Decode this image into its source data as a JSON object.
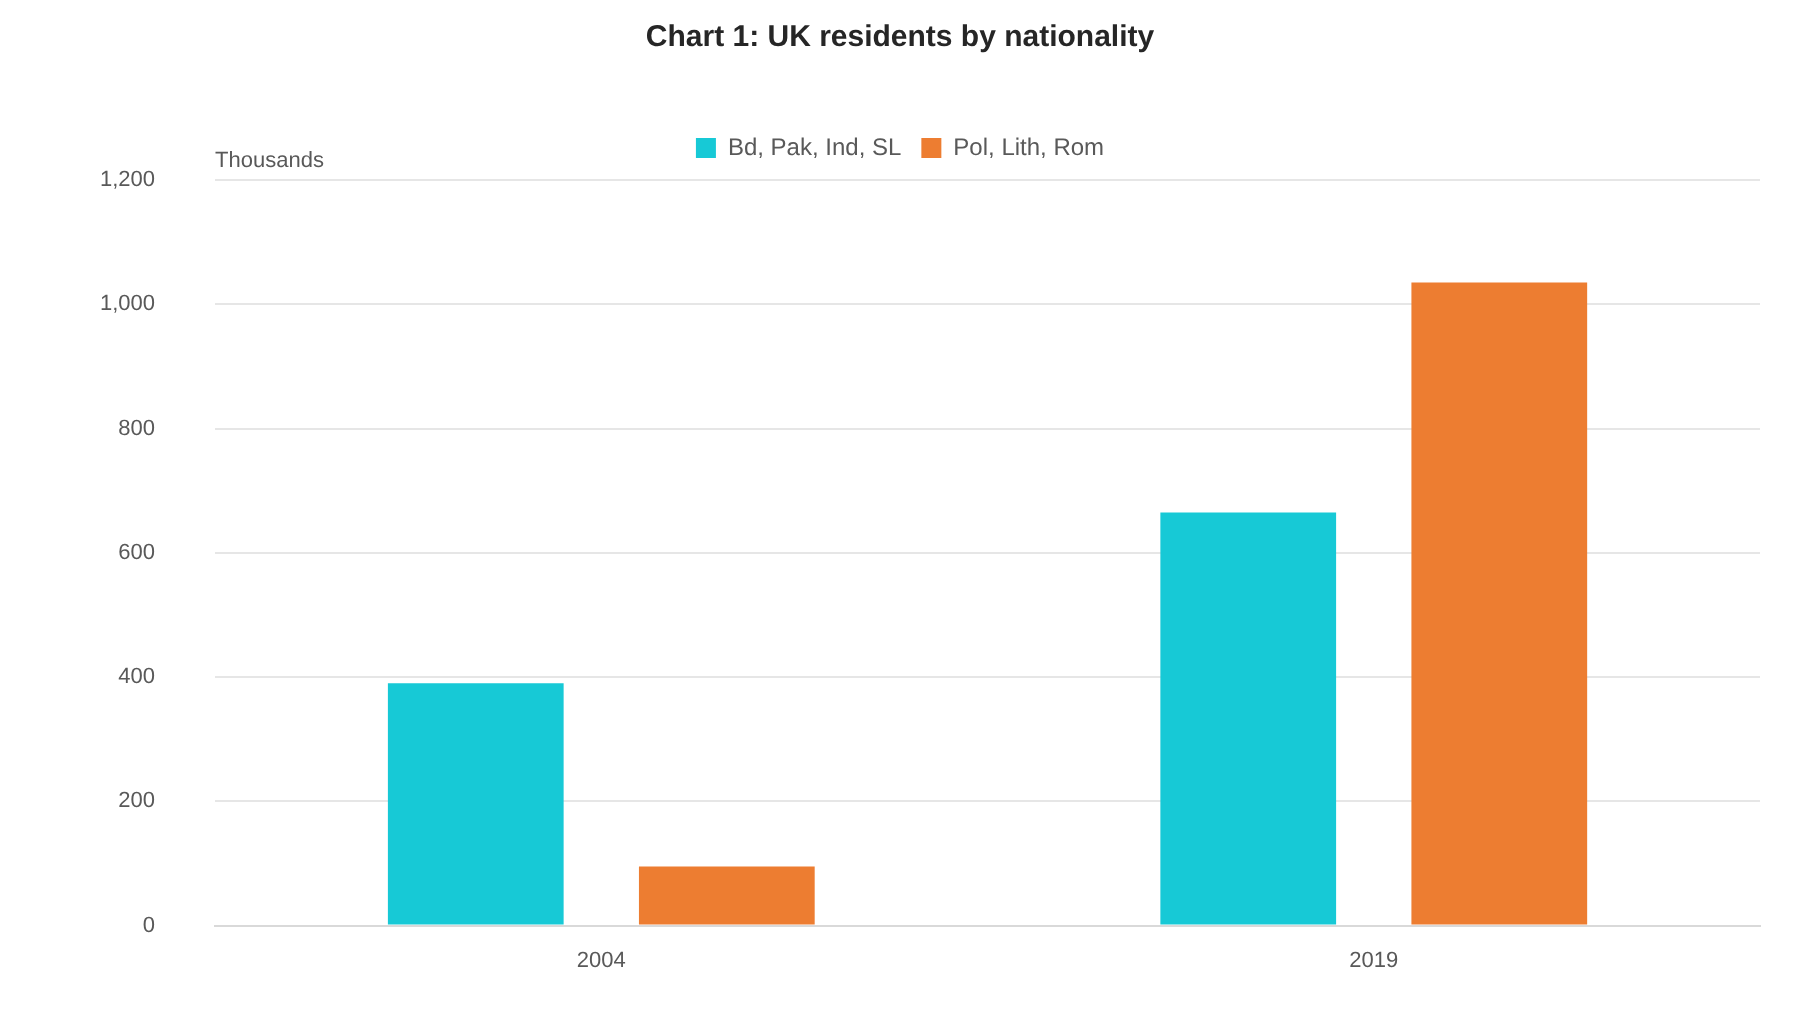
{
  "chart_data": {
    "type": "bar",
    "title": "Chart 1: UK residents by nationality",
    "ylabel": "Thousands",
    "categories": [
      "2004",
      "2019"
    ],
    "series": [
      {
        "name": "Bd, Pak, Ind, SL",
        "color": "#17c9d6",
        "values": [
          390,
          665
        ]
      },
      {
        "name": "Pol, Lith, Rom",
        "color": "#ed7d31",
        "values": [
          95,
          1035
        ]
      }
    ],
    "ylim": [
      0,
      1200
    ],
    "yticks": [
      0,
      200,
      400,
      600,
      800,
      {
        "value": 1000,
        "label": "1,000"
      },
      {
        "value": 1200,
        "label": "1,200"
      }
    ],
    "grid": "y",
    "legend": "top"
  }
}
